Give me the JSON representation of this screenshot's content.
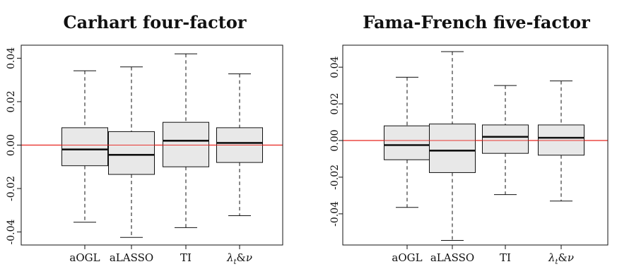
{
  "chart_data": [
    {
      "type": "box",
      "title": "Carhart four-factor",
      "xlabel": "",
      "ylabel": "",
      "ylim": [
        -0.046,
        0.046
      ],
      "yticks": [
        -0.04,
        -0.02,
        0.0,
        0.02,
        0.04
      ],
      "ytick_labels": [
        "-0.04",
        "-0.02",
        "0.00",
        "0.02",
        "0.04"
      ],
      "categories": [
        "aOGL",
        "aLASSO",
        "TI",
        "λt&ν"
      ],
      "boxes": [
        {
          "whisker_low": -0.0355,
          "q1": -0.0095,
          "median": -0.002,
          "q3": 0.008,
          "whisker_high": 0.0342
        },
        {
          "whisker_low": -0.0425,
          "q1": -0.0135,
          "median": -0.0045,
          "q3": 0.0062,
          "whisker_high": 0.036
        },
        {
          "whisker_low": -0.038,
          "q1": -0.01,
          "median": 0.002,
          "q3": 0.0105,
          "whisker_high": 0.042
        },
        {
          "whisker_low": -0.0325,
          "q1": -0.008,
          "median": 0.001,
          "q3": 0.008,
          "whisker_high": 0.0328
        }
      ],
      "reference_line": {
        "y": 0.0,
        "color": "#e8241f"
      },
      "box_fill": "#e8e8e8",
      "grid": false
    },
    {
      "type": "box",
      "title": "Fama-French five-factor",
      "xlabel": "",
      "ylabel": "",
      "ylim": [
        -0.057,
        0.052
      ],
      "yticks": [
        -0.04,
        -0.02,
        0.0,
        0.02,
        0.04
      ],
      "ytick_labels": [
        "-0.04",
        "-0.02",
        "0.00",
        "0.02",
        "0.04"
      ],
      "categories": [
        "aOGL",
        "aLASSO",
        "TI",
        "λt&ν"
      ],
      "boxes": [
        {
          "whisker_low": -0.0365,
          "q1": -0.0105,
          "median": -0.0025,
          "q3": 0.008,
          "whisker_high": 0.0345
        },
        {
          "whisker_low": -0.0545,
          "q1": -0.0175,
          "median": -0.0055,
          "q3": 0.009,
          "whisker_high": 0.0485
        },
        {
          "whisker_low": -0.0295,
          "q1": -0.007,
          "median": 0.002,
          "q3": 0.0085,
          "whisker_high": 0.03
        },
        {
          "whisker_low": -0.033,
          "q1": -0.008,
          "median": 0.0015,
          "q3": 0.0085,
          "whisker_high": 0.0325
        }
      ],
      "reference_line": {
        "y": 0.0,
        "color": "#e8241f"
      },
      "box_fill": "#e8e8e8",
      "grid": false
    }
  ]
}
